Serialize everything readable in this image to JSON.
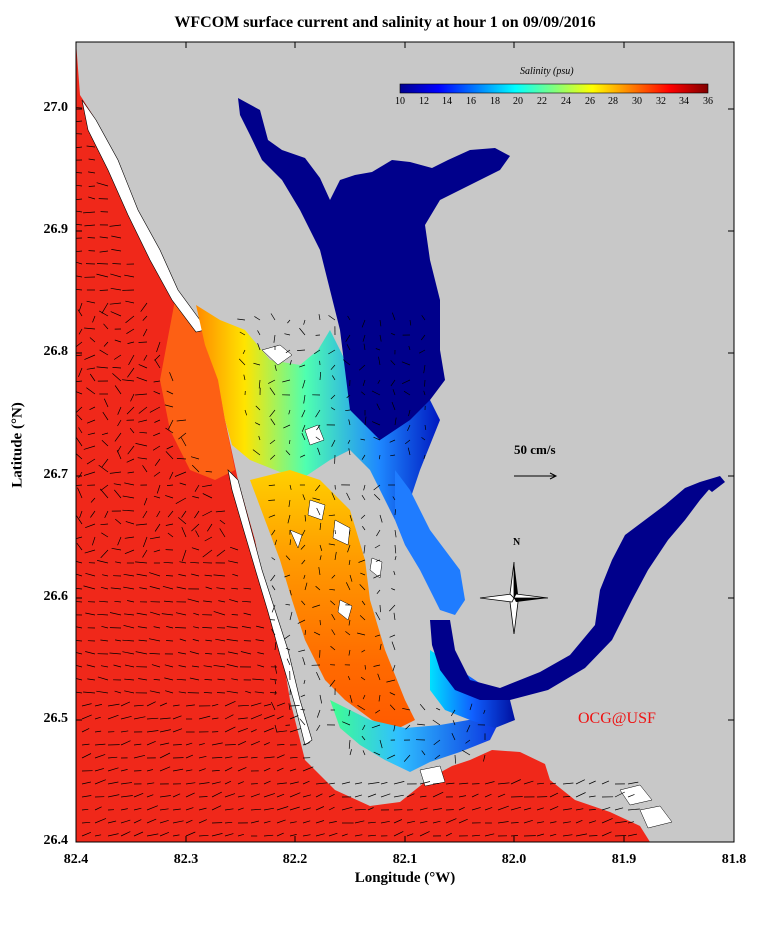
{
  "title": "WFCOM surface current and salinity at hour 1 on 09/09/2016",
  "x_axis": {
    "label": "Longitude (°W)",
    "ticks": [
      "82.4",
      "82.3",
      "82.2",
      "82.1",
      "82.0",
      "81.9",
      "81.8"
    ],
    "range": [
      82.4,
      81.8
    ]
  },
  "y_axis": {
    "label": "Latitude (°N)",
    "ticks": [
      "26.4",
      "26.5",
      "26.6",
      "26.7",
      "26.8",
      "26.9",
      "27.0"
    ],
    "range": [
      26.4,
      27.05
    ]
  },
  "colorbar": {
    "title": "Salinity (psu)",
    "ticks": [
      "10",
      "12",
      "14",
      "16",
      "18",
      "20",
      "22",
      "24",
      "26",
      "28",
      "30",
      "32",
      "34",
      "36"
    ],
    "range": [
      10,
      36
    ],
    "colormap": "jet"
  },
  "vector_scale": {
    "label": "50 cm/s",
    "value_cm_s": 50
  },
  "north_arrow": {
    "label": "N"
  },
  "credit": "OCG@USF",
  "colors": {
    "land": "#c8c8c8",
    "gulf": "#f22010",
    "fresh": "#00008b",
    "credit": "#ee1111",
    "vectors": "#000000"
  }
}
